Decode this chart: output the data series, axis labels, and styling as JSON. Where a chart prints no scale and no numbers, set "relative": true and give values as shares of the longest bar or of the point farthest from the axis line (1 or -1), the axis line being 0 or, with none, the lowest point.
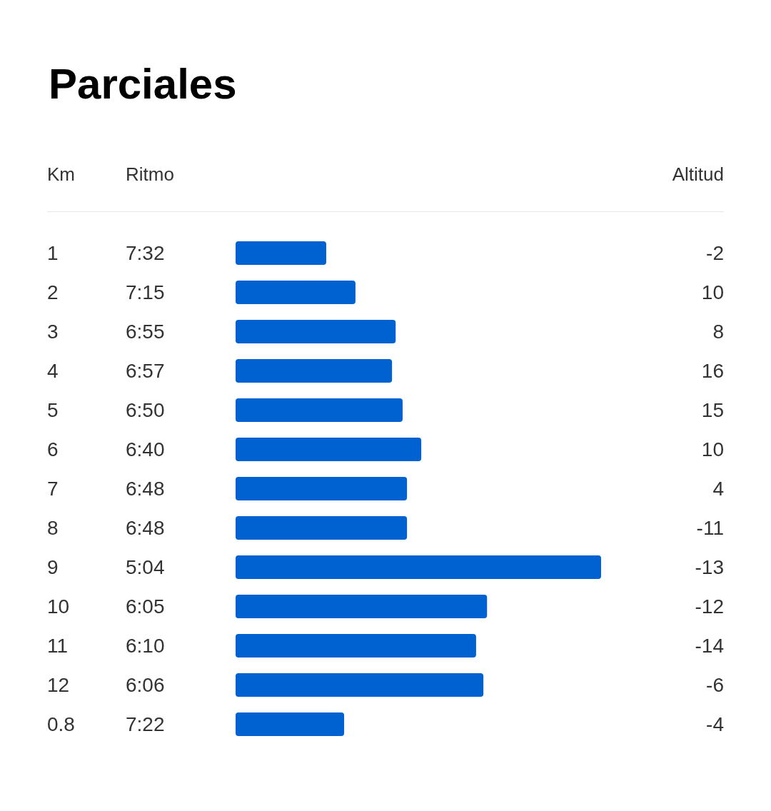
{
  "chart_data": {
    "type": "bar",
    "title": "Parciales",
    "ylabel": "Km",
    "orientation": "horizontal",
    "relative": true,
    "categories": [
      "1",
      "2",
      "3",
      "4",
      "5",
      "6",
      "7",
      "8",
      "9",
      "10",
      "11",
      "12",
      "0.8"
    ],
    "values": [
      0.248,
      0.328,
      0.438,
      0.428,
      0.457,
      0.508,
      0.469,
      0.469,
      1,
      0.688,
      0.658,
      0.678,
      0.297
    ],
    "color": "#0062d1",
    "annotations": [
      "Ritmo",
      "Altitud",
      "7:32",
      "7:15",
      "6:55",
      "6:57",
      "6:50",
      "6:40",
      "6:48",
      "6:48",
      "5:04",
      "6:05",
      "6:10",
      "6:06",
      "7:22",
      "-2",
      "10",
      "8",
      "16",
      "15",
      "10",
      "4",
      "-11",
      "-13",
      "-12",
      "-14",
      "-6",
      "-4"
    ]
  }
}
